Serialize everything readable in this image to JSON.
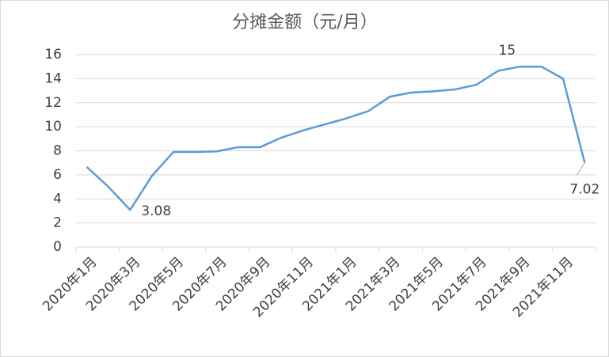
{
  "chart_data": {
    "type": "line",
    "title": "分摊金额（元/月）",
    "categories": [
      "2020年1月",
      null,
      "2020年3月",
      null,
      "2020年5月",
      null,
      "2020年7月",
      null,
      "2020年9月",
      null,
      "2020年11月",
      null,
      "2021年1月",
      null,
      "2021年3月",
      null,
      "2021年5月",
      null,
      "2021年7月",
      null,
      "2021年9月",
      null,
      "2021年11月",
      null
    ],
    "values": [
      6.65,
      5.0,
      3.08,
      5.9,
      7.9,
      7.9,
      7.95,
      8.3,
      8.3,
      9.1,
      9.7,
      10.2,
      10.7,
      11.3,
      12.5,
      12.85,
      12.95,
      13.1,
      13.5,
      14.65,
      15,
      15,
      14,
      7.02
    ],
    "value_labels": [
      null,
      null,
      "3.08",
      null,
      null,
      null,
      null,
      null,
      null,
      null,
      null,
      null,
      null,
      null,
      null,
      null,
      null,
      null,
      null,
      null,
      "15",
      null,
      null,
      "7.02"
    ],
    "color": "#5b9bd5",
    "ylim": [
      0,
      16
    ],
    "yticks": [
      0,
      2,
      4,
      6,
      8,
      10,
      12,
      14,
      16
    ],
    "grid": true
  }
}
